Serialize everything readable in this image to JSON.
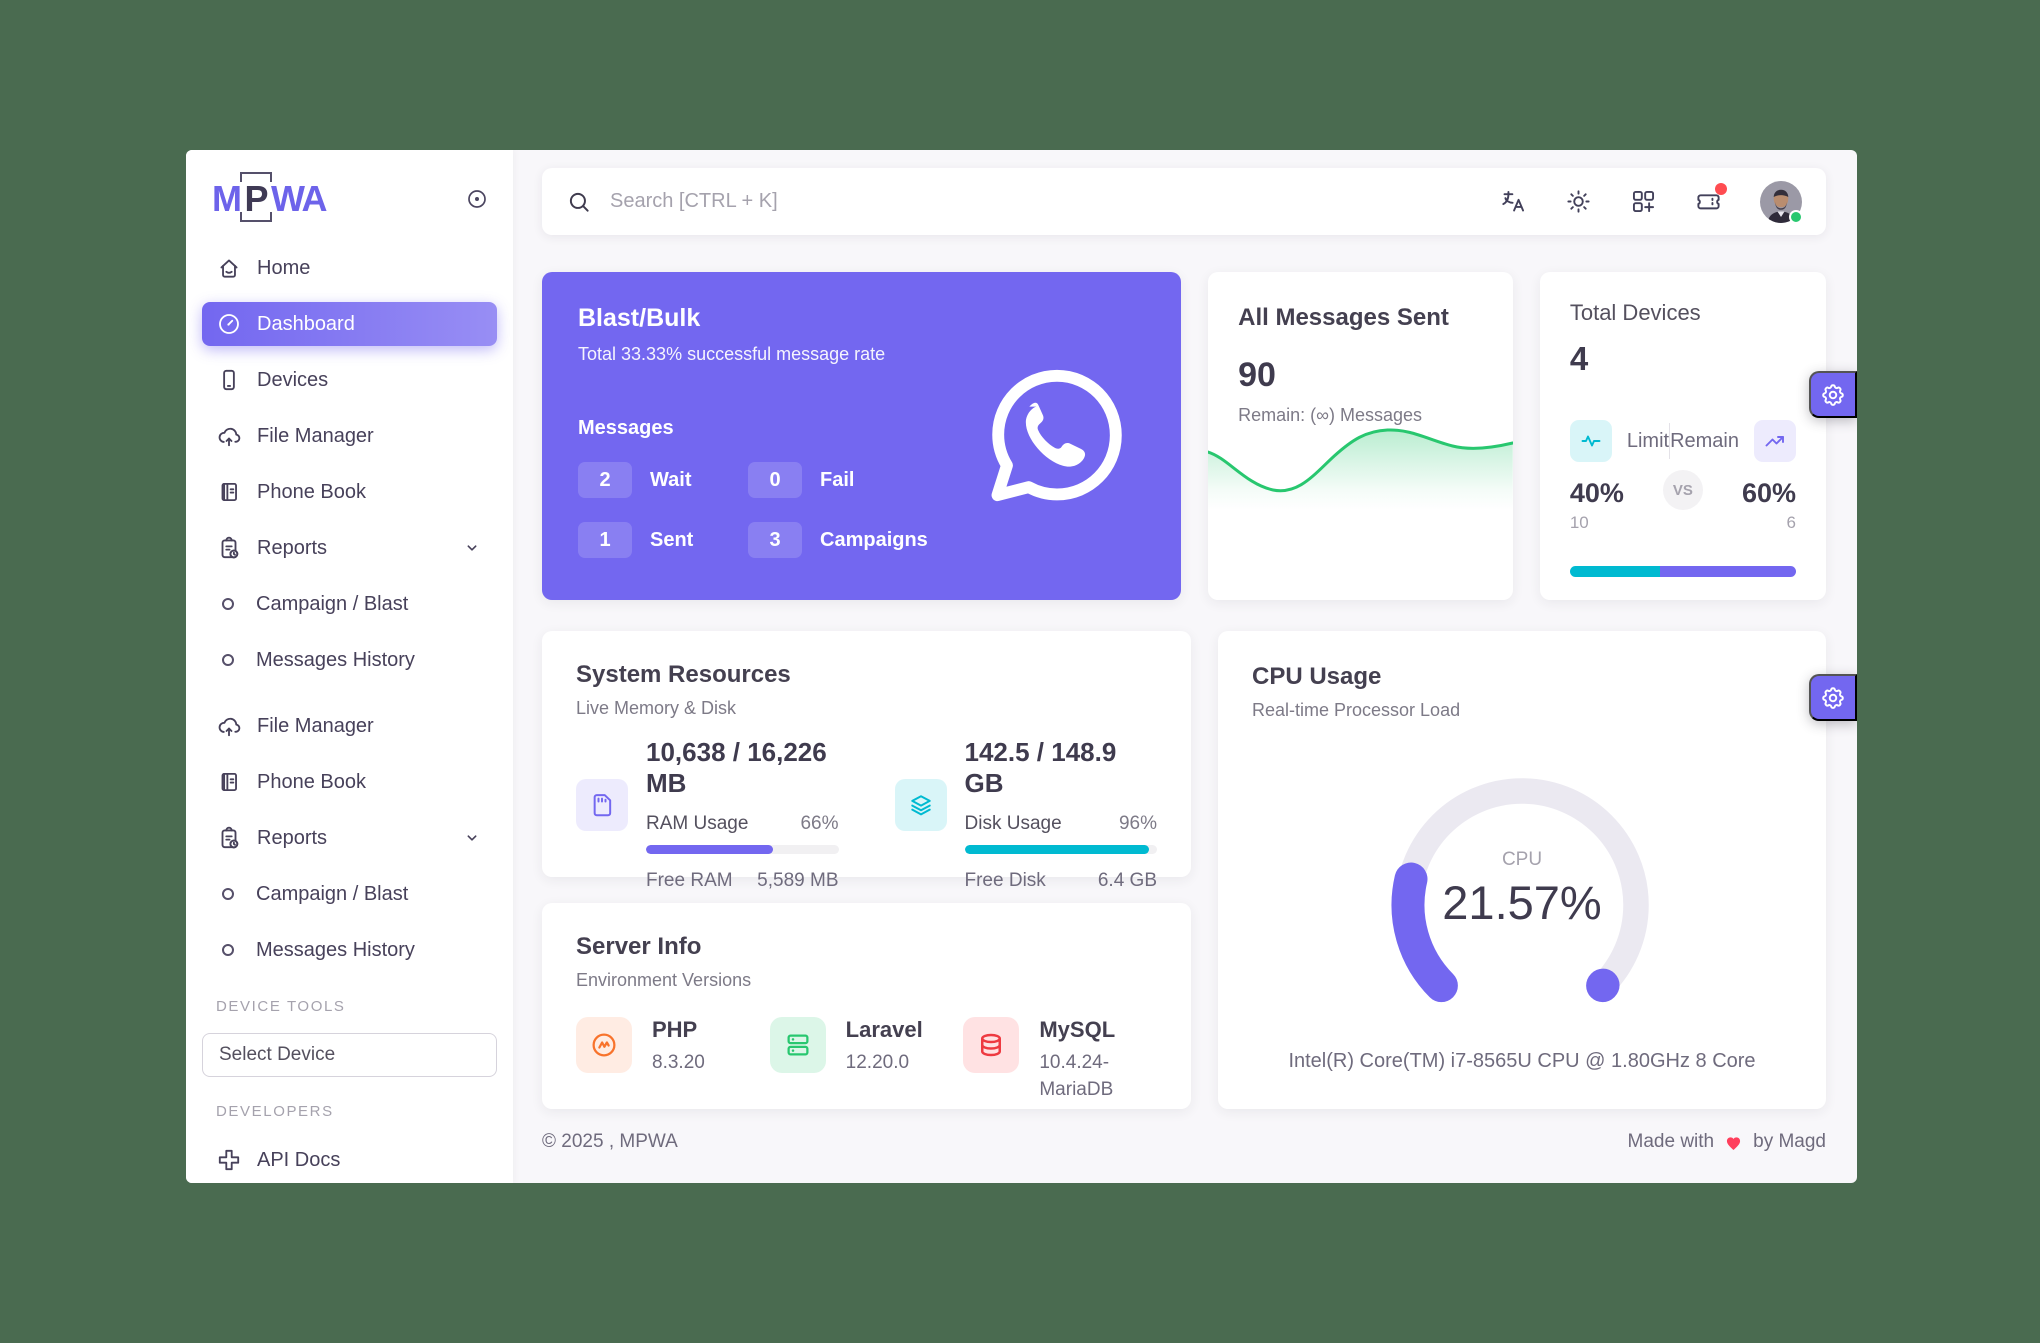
{
  "header": {
    "search_placeholder": "Search [CTRL + K]"
  },
  "sidebar": {
    "logo": {
      "m": "M",
      "p": "P",
      "wa": "WA"
    },
    "items": [
      {
        "label": "Home",
        "icon": "home"
      },
      {
        "label": "Dashboard",
        "icon": "dashboard",
        "active": true
      },
      {
        "label": "Devices",
        "icon": "device"
      },
      {
        "label": "File Manager",
        "icon": "cloud-upload"
      },
      {
        "label": "Phone Book",
        "icon": "phone-book"
      },
      {
        "label": "Reports",
        "icon": "report",
        "chevron": true
      },
      {
        "label": "Campaign / Blast",
        "sub": true
      },
      {
        "label": "Messages History",
        "sub": true
      },
      {
        "label": "File Manager",
        "icon": "cloud-upload",
        "gap": true
      },
      {
        "label": "Phone Book",
        "icon": "phone-book"
      },
      {
        "label": "Reports",
        "icon": "report",
        "chevron": true
      },
      {
        "label": "Campaign / Blast",
        "sub": true
      },
      {
        "label": "Messages History",
        "sub": true
      }
    ],
    "sections": {
      "device_tools": "DEVICE TOOLS",
      "developers": "DEVELOPERS"
    },
    "select_device_label": "Select Device",
    "api_docs_label": "API Docs"
  },
  "cards": {
    "blast": {
      "title": "Blast/Bulk",
      "subtitle": "Total 33.33% successful message rate",
      "messages_label": "Messages",
      "stats": [
        {
          "value": "2",
          "label": "Wait"
        },
        {
          "value": "0",
          "label": "Fail"
        },
        {
          "value": "1",
          "label": "Sent"
        },
        {
          "value": "3",
          "label": "Campaigns"
        }
      ]
    },
    "all_messages": {
      "title": "All Messages Sent",
      "value": "90",
      "remain": "Remain: (∞) Messages"
    },
    "total_devices": {
      "title": "Total Devices",
      "value": "4",
      "limit_label": "Limit",
      "remain_label": "Remain",
      "vs": "VS",
      "limit_pct": "40%",
      "remain_pct": "60%",
      "limit_count": "10",
      "remain_count": "6",
      "limit_ratio": 40,
      "remain_ratio": 60
    },
    "system": {
      "title": "System Resources",
      "subtitle": "Live Memory & Disk",
      "ram": {
        "total": "10,638 / 16,226 MB",
        "usage_label": "RAM Usage",
        "usage_pct": "66%",
        "pct": 66,
        "free_label": "Free RAM",
        "free_value": "5,589 MB"
      },
      "disk": {
        "total": "142.5 / 148.9 GB",
        "usage_label": "Disk Usage",
        "usage_pct": "96%",
        "pct": 96,
        "free_label": "Free Disk",
        "free_value": "6.4 GB"
      }
    },
    "cpu": {
      "title": "CPU Usage",
      "subtitle": "Real-time Processor Load",
      "gauge_label": "CPU",
      "gauge_value": "21.57%",
      "pct": 21.57,
      "cpu_name": "Intel(R) Core(TM) i7-8565U CPU @ 1.80GHz 8 Core"
    },
    "server": {
      "title": "Server Info",
      "subtitle": "Environment Versions",
      "items": [
        {
          "name": "PHP",
          "version": "8.3.20",
          "icon": "php"
        },
        {
          "name": "Laravel",
          "version": "12.20.0",
          "icon": "laravel"
        },
        {
          "name": "MySQL",
          "version": "10.4.24-MariaDB",
          "icon": "mysql"
        }
      ]
    }
  },
  "footer": {
    "left": "© 2025 , MPWA",
    "right_prefix": "Made with",
    "right_suffix": "by Magd"
  },
  "colors": {
    "primary": "#7367f0",
    "success": "#28c76f",
    "info": "#00bad1",
    "danger": "#ff4c51",
    "warning": "#f8732c",
    "window_frame": "#4a6b50"
  }
}
